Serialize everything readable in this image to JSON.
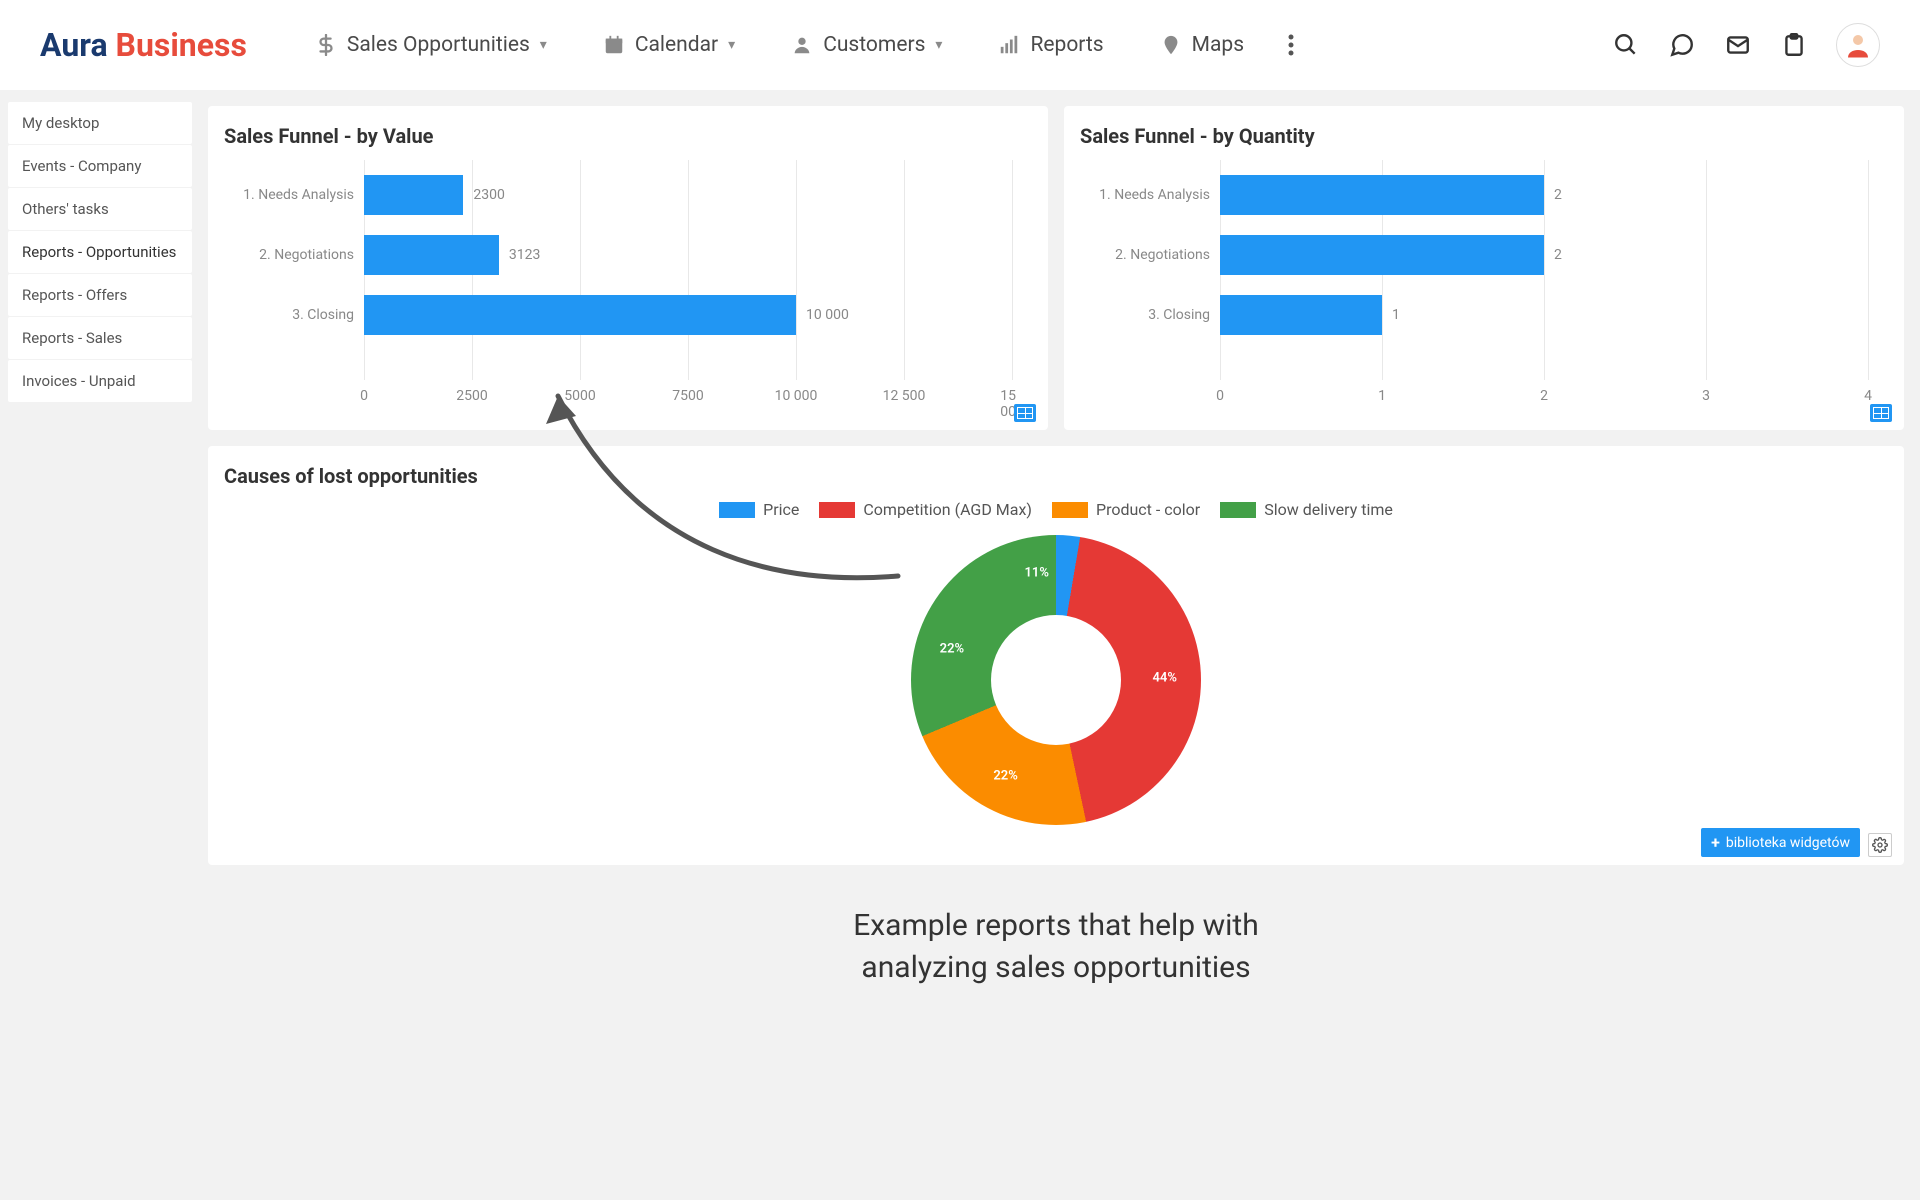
{
  "logo": {
    "part1": "Aura",
    "part2": "Business"
  },
  "nav": [
    {
      "icon": "dollar",
      "label": "Sales Opportunities",
      "dropdown": true
    },
    {
      "icon": "calendar",
      "label": "Calendar",
      "dropdown": true
    },
    {
      "icon": "person",
      "label": "Customers",
      "dropdown": true
    },
    {
      "icon": "bars",
      "label": "Reports",
      "dropdown": false
    },
    {
      "icon": "pin",
      "label": "Maps",
      "dropdown": false
    }
  ],
  "sidebar": {
    "items": [
      "My desktop",
      "Events - Company",
      "Others' tasks",
      "Reports - Opportunities",
      "Reports - Offers",
      "Reports - Sales",
      "Invoices - Unpaid"
    ],
    "active_index": 3
  },
  "funnel_value": {
    "title": "Sales Funnel - by Value",
    "type": "bar-horizontal",
    "bar_color": "#2196f3",
    "grid_color": "#e8e8e8",
    "label_color": "#888888",
    "label_fontsize": 14,
    "categories": [
      "1. Needs Analysis",
      "2. Negotiations",
      "3. Closing"
    ],
    "values": [
      2300,
      3123,
      10000
    ],
    "value_labels": [
      "2300",
      "3123",
      "10 000"
    ],
    "xmax": 15000,
    "xticks": [
      0,
      2500,
      5000,
      7500,
      10000,
      12500,
      15000
    ],
    "xtick_labels": [
      "0",
      "2500",
      "5000",
      "7500",
      "10 000",
      "12 500",
      "15 000"
    ]
  },
  "funnel_qty": {
    "title": "Sales Funnel - by Quantity",
    "type": "bar-horizontal",
    "bar_color": "#2196f3",
    "grid_color": "#e8e8e8",
    "label_color": "#888888",
    "label_fontsize": 14,
    "categories": [
      "1. Needs Analysis",
      "2. Negotiations",
      "3. Closing"
    ],
    "values": [
      2,
      2,
      1
    ],
    "value_labels": [
      "2",
      "2",
      "1"
    ],
    "xmax": 4,
    "xticks": [
      0,
      1,
      2,
      3,
      4
    ],
    "xtick_labels": [
      "0",
      "1",
      "2",
      "3",
      "4"
    ]
  },
  "causes": {
    "title": "Causes of lost opportunities",
    "type": "donut",
    "legend": [
      {
        "label": "Price",
        "color": "#2196f3"
      },
      {
        "label": "Competition (AGD Max)",
        "color": "#e53935"
      },
      {
        "label": "Product - color",
        "color": "#fb8c00"
      },
      {
        "label": "Slow delivery time",
        "color": "#43a047"
      }
    ],
    "slices": [
      {
        "pct": 11,
        "label": "11%",
        "color": "#2196f3"
      },
      {
        "pct": 44,
        "label": "44%",
        "color": "#e53935"
      },
      {
        "pct": 22,
        "label": "22%",
        "color": "#fb8c00"
      },
      {
        "pct": 22,
        "label": "22%",
        "color": "#43a047"
      }
    ],
    "start_angle_deg": -30,
    "hole_ratio": 0.45,
    "label_radius_ratio": 0.75
  },
  "widget_button": "biblioteka widgetów",
  "caption": {
    "line1": "Example reports that help with",
    "line2": "analyzing sales opportunities"
  }
}
